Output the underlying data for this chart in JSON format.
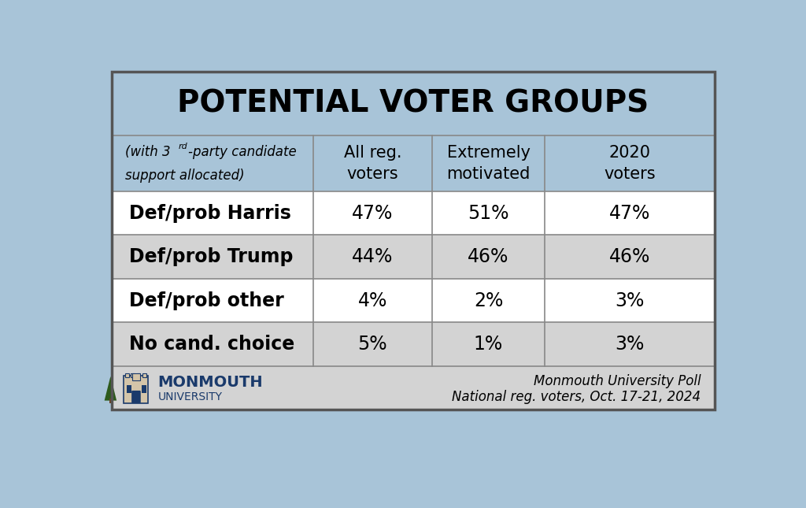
{
  "title": "POTENTIAL VOTER GROUPS",
  "col_headers": [
    "All reg.\nvoters",
    "Extremely\nmotivated",
    "2020\nvoters"
  ],
  "row_labels": [
    "Def/prob Harris",
    "Def/prob Trump",
    "Def/prob other",
    "No cand. choice"
  ],
  "data": [
    [
      "47%",
      "51%",
      "47%"
    ],
    [
      "44%",
      "46%",
      "46%"
    ],
    [
      "4%",
      "2%",
      "3%"
    ],
    [
      "5%",
      "1%",
      "3%"
    ]
  ],
  "row_bg_colors": [
    "#ffffff",
    "#d3d3d3",
    "#ffffff",
    "#d3d3d3"
  ],
  "header_bg_color": "#a8c4d8",
  "title_bg_color": "#a8c4d8",
  "outer_bg_color": "#a8c4d8",
  "footer_bg_color": "#d3d3d3",
  "border_color": "#888888",
  "title_fontsize": 28,
  "header_fontsize": 15,
  "row_label_fontsize": 17,
  "data_fontsize": 17,
  "footer_text_right_1": "Monmouth University Poll",
  "footer_text_right_2": "National reg. voters, Oct. 17-21, 2024",
  "monmouth_color": "#1a3a6b",
  "subtitle_part1": "(with 3",
  "subtitle_sup": "rd",
  "subtitle_part2": "-party candidate",
  "subtitle_line2": "support allocated)"
}
